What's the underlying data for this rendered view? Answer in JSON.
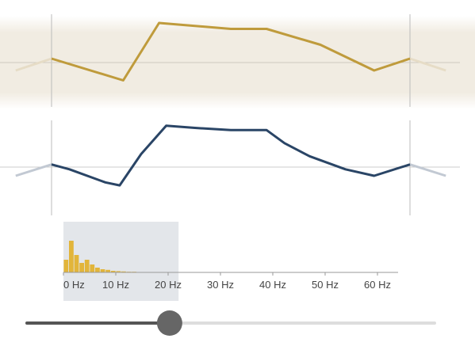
{
  "colors": {
    "background": "#ffffff",
    "input_wave": "#bf9b3c",
    "input_band": "#f1ece2",
    "output_wave": "#2a4566",
    "spectrum_bars": "#e2b53a",
    "filter_region": "#e3e6ea",
    "slider_track_filled": "#555555",
    "slider_track_empty": "#dddddd",
    "slider_handle": "#666666"
  },
  "spectrum": {
    "axis_ticks": [
      "0 Hz",
      "10 Hz",
      "20 Hz",
      "30 Hz",
      "40 Hz",
      "50 Hz",
      "60 Hz"
    ],
    "axis_range_hz": [
      0,
      65
    ],
    "cutoff_hz": 22,
    "bar_magnitudes": [
      0.4,
      1.0,
      0.55,
      0.3,
      0.4,
      0.25,
      0.15,
      0.1,
      0.08,
      0.05,
      0.04,
      0.03,
      0.02,
      0.02,
      0.01,
      0.01
    ]
  },
  "cutoff_slider": {
    "value_fraction": 0.35
  },
  "chart_data": [
    {
      "type": "line",
      "series": [
        {
          "x": [
            -0.1,
            0.0,
            0.2,
            0.3,
            0.5,
            0.6,
            0.75,
            0.9,
            1.0,
            1.1
          ],
          "values": [
            -0.2,
            0.1,
            -0.45,
            1.0,
            0.85,
            0.85,
            0.45,
            -0.2,
            0.1,
            -0.2
          ]
        }
      ]
    },
    {
      "type": "line",
      "series": [
        {
          "x": [
            -0.1,
            0.0,
            0.05,
            0.15,
            0.19,
            0.25,
            0.32,
            0.4,
            0.5,
            0.6,
            0.65,
            0.72,
            0.82,
            0.9,
            1.0,
            1.1
          ],
          "values": [
            -0.2,
            0.06,
            -0.05,
            -0.35,
            -0.42,
            0.3,
            0.95,
            0.9,
            0.85,
            0.85,
            0.55,
            0.25,
            -0.05,
            -0.2,
            0.06,
            -0.2
          ]
        }
      ]
    }
  ]
}
